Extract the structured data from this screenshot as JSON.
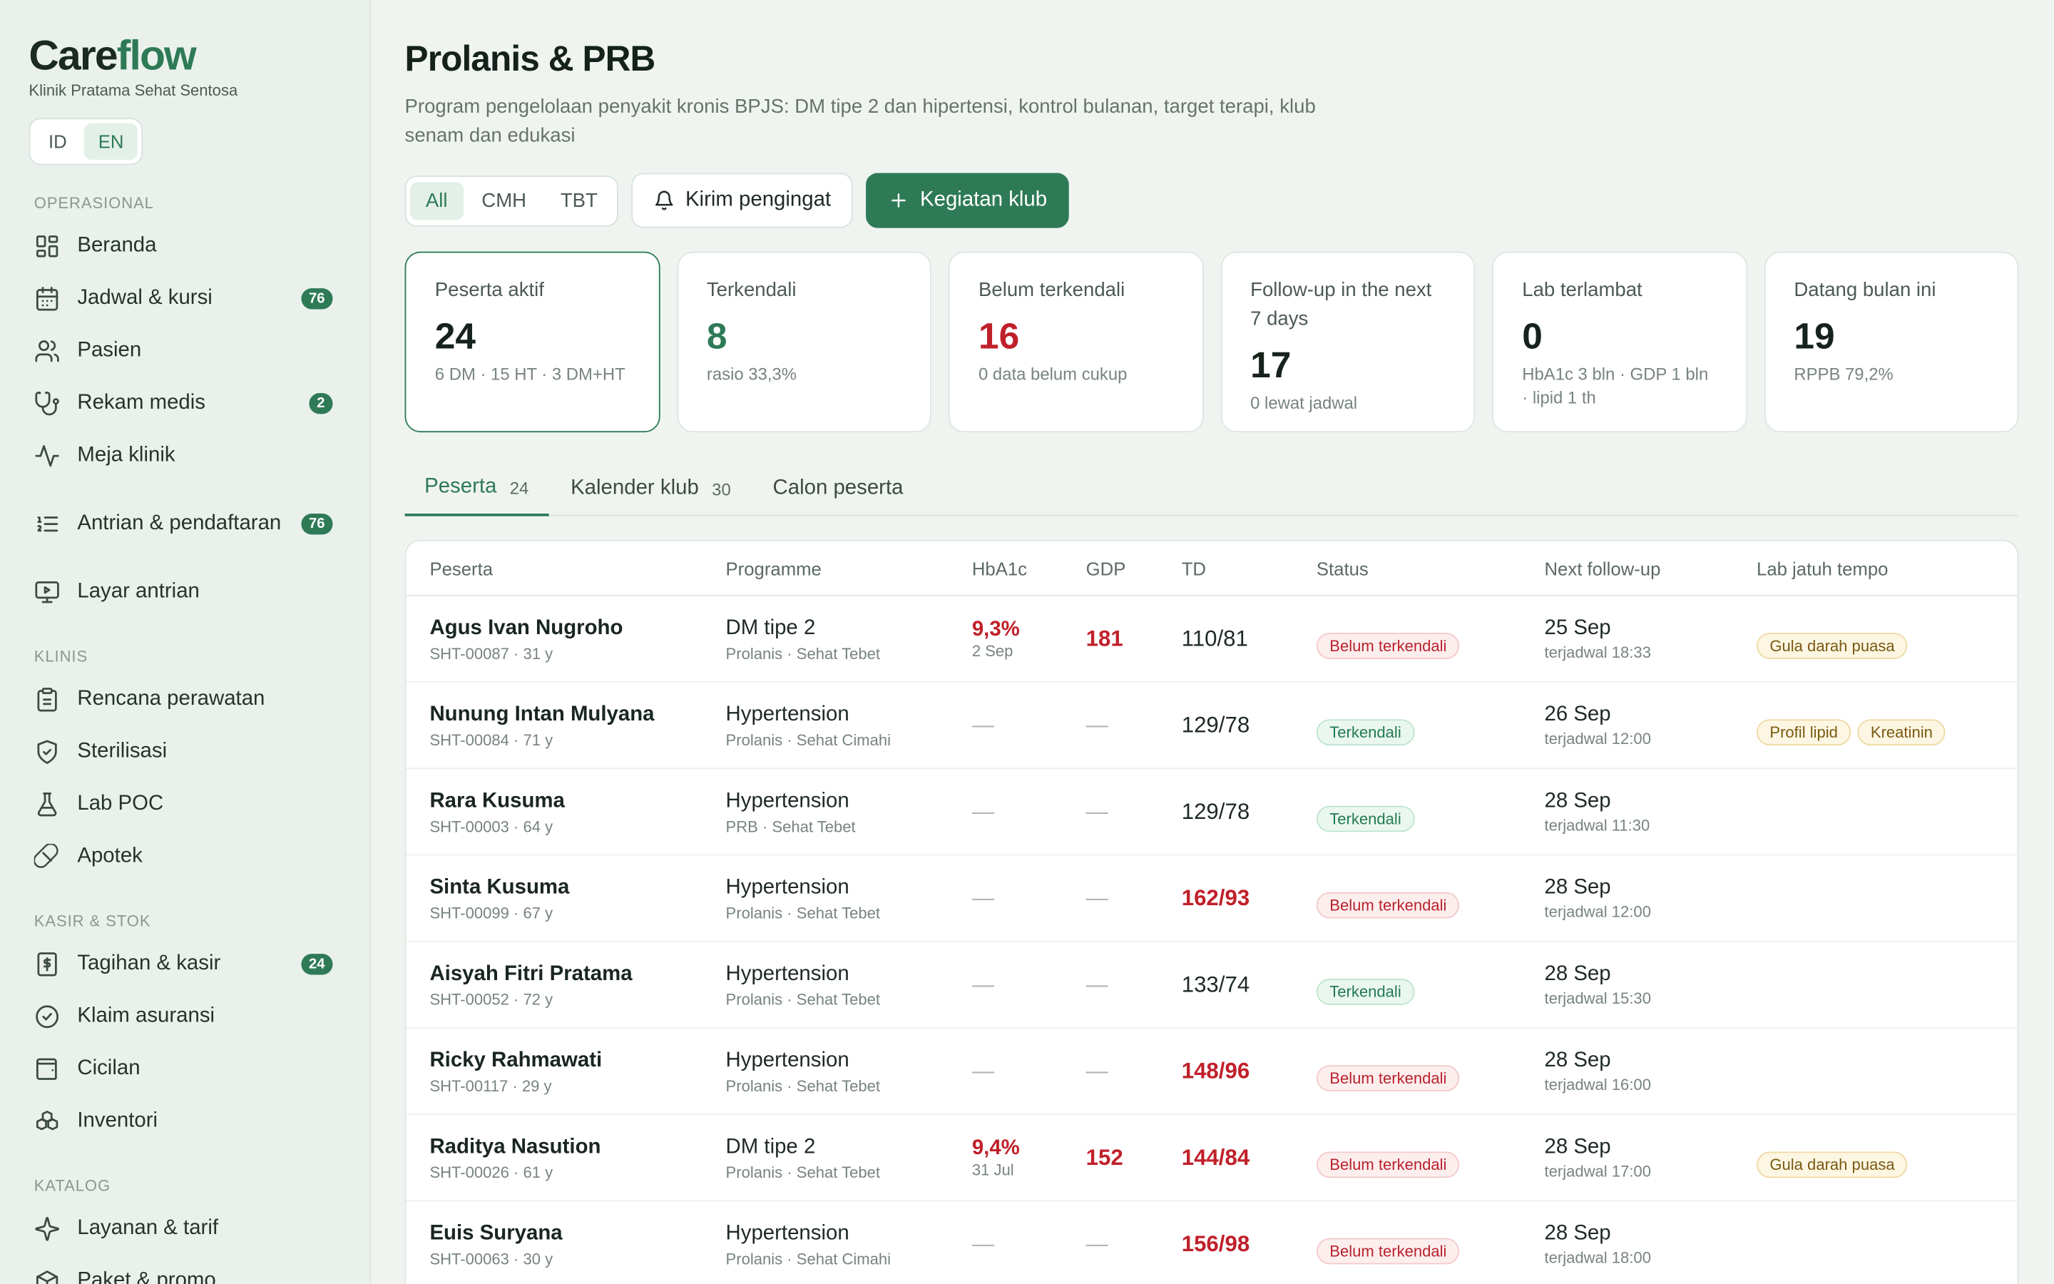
{
  "app": {
    "logo_a": "Care",
    "logo_b": "flow",
    "clinic": "Klinik Pratama Sehat Sentosa",
    "lang": [
      "ID",
      "EN"
    ]
  },
  "sidebar": {
    "sections": [
      {
        "title": "OPERASIONAL",
        "items": [
          {
            "label": "Beranda",
            "icon": "grid-icon",
            "badge": ""
          },
          {
            "label": "Jadwal & kursi",
            "icon": "calendar-icon",
            "badge": "76"
          },
          {
            "label": "Pasien",
            "icon": "users-icon",
            "badge": ""
          },
          {
            "label": "Rekam medis",
            "icon": "stethoscope-icon",
            "badge": "2"
          },
          {
            "label": "Meja klinik",
            "icon": "activity-icon",
            "badge": ""
          },
          {
            "label": "Antrian & pendaftaran",
            "icon": "list-ordered-icon",
            "badge": "76"
          },
          {
            "label": "Layar antrian",
            "icon": "monitor-play-icon",
            "badge": ""
          }
        ]
      },
      {
        "title": "KLINIS",
        "items": [
          {
            "label": "Rencana perawatan",
            "icon": "clipboard-icon",
            "badge": ""
          },
          {
            "label": "Sterilisasi",
            "icon": "shield-check-icon",
            "badge": ""
          },
          {
            "label": "Lab POC",
            "icon": "flask-icon",
            "badge": ""
          },
          {
            "label": "Apotek",
            "icon": "pill-icon",
            "badge": ""
          }
        ]
      },
      {
        "title": "KASIR & STOK",
        "items": [
          {
            "label": "Tagihan & kasir",
            "icon": "receipt-icon",
            "badge": "24"
          },
          {
            "label": "Klaim asuransi",
            "icon": "badge-check-icon",
            "badge": ""
          },
          {
            "label": "Cicilan",
            "icon": "wallet-icon",
            "badge": ""
          },
          {
            "label": "Inventori",
            "icon": "boxes-icon",
            "badge": ""
          }
        ]
      },
      {
        "title": "KATALOG",
        "items": [
          {
            "label": "Layanan & tarif",
            "icon": "sparkles-icon",
            "badge": ""
          },
          {
            "label": "Paket & promo",
            "icon": "package-icon",
            "badge": ""
          }
        ]
      }
    ]
  },
  "page": {
    "title": "Prolanis & PRB",
    "subtitle": "Program pengelolaan penyakit kronis BPJS: DM tipe 2 dan hipertensi, kontrol bulanan, target terapi, klub senam dan edukasi",
    "filters": [
      "All",
      "CMH",
      "TBT"
    ],
    "remind_label": "Kirim pengingat",
    "club_label": "Kegiatan klub"
  },
  "stats": [
    {
      "title": "Peserta aktif",
      "value": "24",
      "note": "6 DM · 15 HT · 3 DM+HT",
      "tone": ""
    },
    {
      "title": "Terkendali",
      "value": "8",
      "note": "rasio 33,3%",
      "tone": "g"
    },
    {
      "title": "Belum terkendali",
      "value": "16",
      "note": "0 data belum cukup",
      "tone": "r"
    },
    {
      "title": "Follow-up in the next 7 days",
      "value": "17",
      "note": "0 lewat jadwal",
      "tone": ""
    },
    {
      "title": "Lab terlambat",
      "value": "0",
      "note": "HbA1c 3 bln · GDP 1 bln · lipid 1 th",
      "tone": ""
    },
    {
      "title": "Datang bulan ini",
      "value": "19",
      "note": "RPPB 79,2%",
      "tone": ""
    }
  ],
  "tabs": [
    {
      "label": "Peserta",
      "count": "24"
    },
    {
      "label": "Kalender klub",
      "count": "30"
    },
    {
      "label": "Calon peserta",
      "count": ""
    }
  ],
  "table": {
    "headers": [
      "Peserta",
      "Programme",
      "HbA1c",
      "GDP",
      "TD",
      "Status",
      "Next follow-up",
      "Lab jatuh tempo"
    ],
    "rows": [
      {
        "name": "Agus Ivan Nugroho",
        "id": "SHT-00087 · 31 y",
        "prog": "DM tipe 2",
        "prog_sub": "Prolanis · Sehat Tebet",
        "hba1c": "9,3%",
        "hba1c_date": "2 Sep",
        "gdp": "181",
        "td": "110/81",
        "td_alert": false,
        "status": "Belum terkendali",
        "ok": false,
        "fu": "25 Sep",
        "fu_sub": "terjadwal 18:33",
        "labs": [
          "Gula darah puasa"
        ]
      },
      {
        "name": "Nunung Intan Mulyana",
        "id": "SHT-00084 · 71 y",
        "prog": "Hypertension",
        "prog_sub": "Prolanis · Sehat Cimahi",
        "hba1c": "—",
        "hba1c_date": "",
        "gdp": "—",
        "td": "129/78",
        "td_alert": false,
        "status": "Terkendali",
        "ok": true,
        "fu": "26 Sep",
        "fu_sub": "terjadwal 12:00",
        "labs": [
          "Profil lipid",
          "Kreatinin"
        ]
      },
      {
        "name": "Rara Kusuma",
        "id": "SHT-00003 · 64 y",
        "prog": "Hypertension",
        "prog_sub": "PRB · Sehat Tebet",
        "hba1c": "—",
        "hba1c_date": "",
        "gdp": "—",
        "td": "129/78",
        "td_alert": false,
        "status": "Terkendali",
        "ok": true,
        "fu": "28 Sep",
        "fu_sub": "terjadwal 11:30",
        "labs": []
      },
      {
        "name": "Sinta Kusuma",
        "id": "SHT-00099 · 67 y",
        "prog": "Hypertension",
        "prog_sub": "Prolanis · Sehat Tebet",
        "hba1c": "—",
        "hba1c_date": "",
        "gdp": "—",
        "td": "162/93",
        "td_alert": true,
        "status": "Belum terkendali",
        "ok": false,
        "fu": "28 Sep",
        "fu_sub": "terjadwal 12:00",
        "labs": []
      },
      {
        "name": "Aisyah Fitri Pratama",
        "id": "SHT-00052 · 72 y",
        "prog": "Hypertension",
        "prog_sub": "Prolanis · Sehat Tebet",
        "hba1c": "—",
        "hba1c_date": "",
        "gdp": "—",
        "td": "133/74",
        "td_alert": false,
        "status": "Terkendali",
        "ok": true,
        "fu": "28 Sep",
        "fu_sub": "terjadwal 15:30",
        "labs": []
      },
      {
        "name": "Ricky Rahmawati",
        "id": "SHT-00117 · 29 y",
        "prog": "Hypertension",
        "prog_sub": "Prolanis · Sehat Tebet",
        "hba1c": "—",
        "hba1c_date": "",
        "gdp": "—",
        "td": "148/96",
        "td_alert": true,
        "status": "Belum terkendali",
        "ok": false,
        "fu": "28 Sep",
        "fu_sub": "terjadwal 16:00",
        "labs": []
      },
      {
        "name": "Raditya Nasution",
        "id": "SHT-00026 · 61 y",
        "prog": "DM tipe 2",
        "prog_sub": "Prolanis · Sehat Tebet",
        "hba1c": "9,4%",
        "hba1c_date": "31 Jul",
        "gdp": "152",
        "td": "144/84",
        "td_alert": true,
        "status": "Belum terkendali",
        "ok": false,
        "fu": "28 Sep",
        "fu_sub": "terjadwal 17:00",
        "labs": [
          "Gula darah puasa"
        ]
      },
      {
        "name": "Euis Suryana",
        "id": "SHT-00063 · 30 y",
        "prog": "Hypertension",
        "prog_sub": "Prolanis · Sehat Cimahi",
        "hba1c": "—",
        "hba1c_date": "",
        "gdp": "—",
        "td": "156/98",
        "td_alert": true,
        "status": "Belum terkendali",
        "ok": false,
        "fu": "28 Sep",
        "fu_sub": "terjadwal 18:00",
        "labs": []
      }
    ]
  },
  "colors": {
    "accent": "#2e7a57",
    "alert": "#c0202a",
    "bg": "#f0f4f1",
    "sidebar": "#eaf1ec"
  }
}
